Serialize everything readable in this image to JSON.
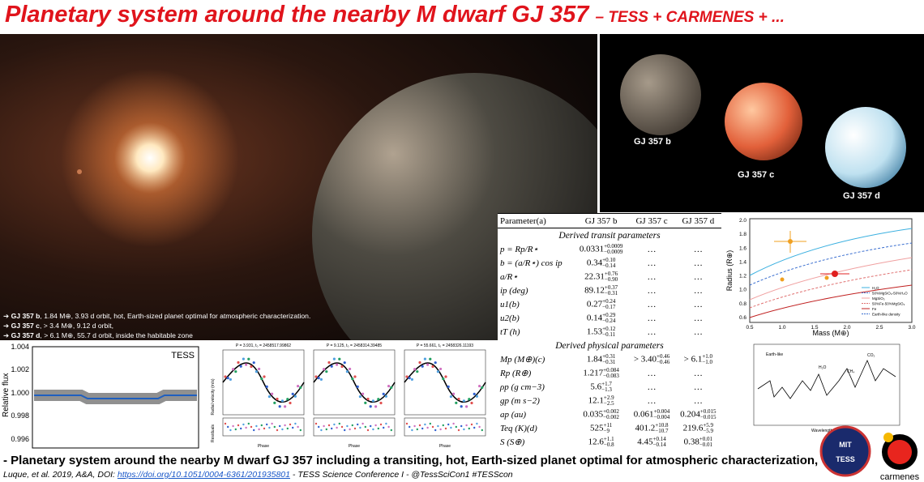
{
  "header": {
    "title": "Planetary system around the nearby M dwarf GJ 357",
    "subtitle": "– TESS + CARMENES + ..."
  },
  "planets": [
    {
      "label": "GJ 357 b"
    },
    {
      "label": "GJ 357 c"
    },
    {
      "label": "GJ 357 d"
    }
  ],
  "bullets": [
    {
      "name": "GJ 357 b",
      "text": ",  1.84 M⊕, 3.93 d orbit, hot, Earth-sized planet optimal for atmospheric characterization."
    },
    {
      "name": "GJ 357 c",
      "text": ", > 3.4 M⊕, 9.12 d orbit,"
    },
    {
      "name": "GJ 357 d",
      "text": ", > 6.1 M⊕, 55.7 d orbit, inside the habitable zone"
    }
  ],
  "light_curve": {
    "label": "TESS",
    "ylabel": "Relative flux",
    "yticks": [
      "1.004",
      "1.002",
      "1.000",
      "0.998",
      "0.996"
    ]
  },
  "rv": {
    "panels": [
      "P = 3.931, t₀ = 2458517.99862",
      "P = 9.125, t₀ = 2458314.39485",
      "P = 55.661, t₀ = 2458326.11193"
    ],
    "ylabel": "Radial velocity (m/s)",
    "reslabel": "Residuals",
    "xlabel": "Phase"
  },
  "table": {
    "header": [
      "Parameter(a)",
      "GJ 357 b",
      "GJ 357 c",
      "GJ 357 d"
    ],
    "sections": [
      {
        "title": "Derived transit parameters",
        "rows": [
          [
            "p = Rp/R⋆",
            {
              "v": "0.0331",
              "p": "+0.0009",
              "m": "−0.0009"
            },
            "…",
            "…"
          ],
          [
            "b = (a/R⋆) cos ip",
            {
              "v": "0.34",
              "p": "+0.10",
              "m": "−0.14"
            },
            "…",
            "…"
          ],
          [
            "a/R⋆",
            {
              "v": "22.31",
              "p": "+0.76",
              "m": "−0.90"
            },
            "…",
            "…"
          ],
          [
            "ip (deg)",
            {
              "v": "89.12",
              "p": "+0.37",
              "m": "−0.31"
            },
            "…",
            "…"
          ],
          [
            "u1(b)",
            {
              "v": "0.27",
              "p": "+0.24",
              "m": "−0.17"
            },
            "…",
            "…"
          ],
          [
            "u2(b)",
            {
              "v": "0.14",
              "p": "+0.29",
              "m": "−0.24"
            },
            "…",
            "…"
          ],
          [
            "tT (h)",
            {
              "v": "1.53",
              "p": "+0.12",
              "m": "−0.11"
            },
            "…",
            "…"
          ]
        ]
      },
      {
        "title": "Derived physical parameters",
        "rows": [
          [
            "Mp (M⊕)(c)",
            {
              "v": "1.84",
              "p": "+0.31",
              "m": "−0.31"
            },
            {
              "v": "> 3.40",
              "p": "+0.46",
              "m": "−0.46"
            },
            {
              "v": "> 6.1",
              "p": "+1.0",
              "m": "−1.0"
            }
          ],
          [
            "Rp (R⊕)",
            {
              "v": "1.217",
              "p": "+0.084",
              "m": "−0.083"
            },
            "…",
            "…"
          ],
          [
            "ρp (g cm−3)",
            {
              "v": "5.6",
              "p": "+1.7",
              "m": "−1.3"
            },
            "…",
            "…"
          ],
          [
            "gp (m s−2)",
            {
              "v": "12.1",
              "p": "+2.9",
              "m": "−2.5"
            },
            "…",
            "…"
          ],
          [
            "ap (au)",
            {
              "v": "0.035",
              "p": "+0.002",
              "m": "−0.002"
            },
            {
              "v": "0.061",
              "p": "+0.004",
              "m": "−0.004"
            },
            {
              "v": "0.204",
              "p": "+0.015",
              "m": "−0.015"
            }
          ],
          [
            "Teq (K)(d)",
            {
              "v": "525",
              "p": "+11",
              "m": "−9"
            },
            {
              "v": "401.2",
              "p": "+10.8",
              "m": "−10.7"
            },
            {
              "v": "219.6",
              "p": "+5.9",
              "m": "−5.9"
            }
          ],
          [
            "S (S⊕)",
            {
              "v": "12.6",
              "p": "+1.1",
              "m": "−0.8"
            },
            {
              "v": "4.45",
              "p": "+0.14",
              "m": "−0.14"
            },
            {
              "v": "0.38",
              "p": "+0.01",
              "m": "−0.01"
            }
          ]
        ]
      }
    ]
  },
  "mass_radius": {
    "xlabel": "Mass (M⊕)",
    "ylabel": "Radius (R⊕)",
    "xticks": [
      "0.5",
      "1.0",
      "1.5",
      "2.0",
      "2.5",
      "3.0"
    ],
    "yticks": [
      "2.0",
      "1.8",
      "1.6",
      "1.4",
      "1.2",
      "1.0",
      "0.8",
      "0.6"
    ],
    "legend": [
      "H₂O",
      "50%MgSiO₃-50%H₂O",
      "MgSiO₃",
      "50%Fe-50%MgSiO₃",
      "Fe",
      "Earth-like density"
    ]
  },
  "spectrum": {
    "legend": "Earth-like",
    "features": [
      "H₂O",
      "CO₂",
      "CH₄"
    ],
    "xlabel": "Wavelength (μm)"
  },
  "footer": {
    "summary": "- Planetary system around the nearby M dwarf GJ 357 including a transiting,  hot, Earth-sized planet optimal for atmospheric characterization,",
    "citation": "Luque, et al. 2019, A&A, DOI: ",
    "doi": "https://doi.org/10.1051/0004-6361/201935801",
    "conference": "  - TESS Science Conference I - @TessSciCon1 #TESScon"
  },
  "logos": [
    "MIT",
    "TESS",
    "carmenes"
  ]
}
